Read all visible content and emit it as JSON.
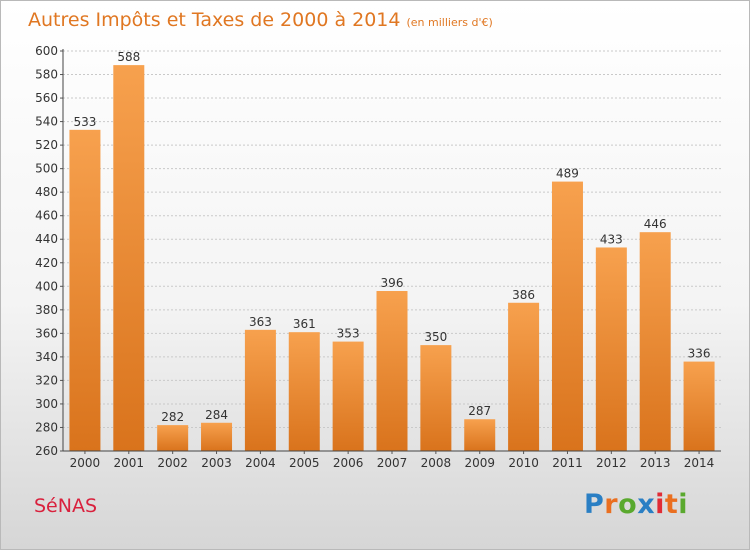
{
  "chart_data": {
    "type": "bar",
    "title": "Autres Impôts et Taxes de 2000 à 2014",
    "subtitle": "(en milliers d'€)",
    "categories": [
      "2000",
      "2001",
      "2002",
      "2003",
      "2004",
      "2005",
      "2006",
      "2007",
      "2008",
      "2009",
      "2010",
      "2011",
      "2012",
      "2013",
      "2014"
    ],
    "values": [
      533,
      588,
      282,
      284,
      363,
      361,
      353,
      396,
      350,
      287,
      386,
      489,
      433,
      446,
      336
    ],
    "ylim": [
      260,
      600
    ],
    "yticks": [
      260,
      280,
      300,
      320,
      340,
      360,
      380,
      400,
      420,
      440,
      460,
      480,
      500,
      520,
      540,
      560,
      580,
      600
    ],
    "grid": true,
    "bar_color": "#f08a2c"
  },
  "footer": {
    "town": "SéNAS",
    "logo": "Proxiti",
    "logo_colors": [
      "#2a7fc4",
      "#ea6f20",
      "#5aa92e",
      "#2a7fc4",
      "#e12c35",
      "#ea6f20",
      "#5aa92e"
    ]
  }
}
